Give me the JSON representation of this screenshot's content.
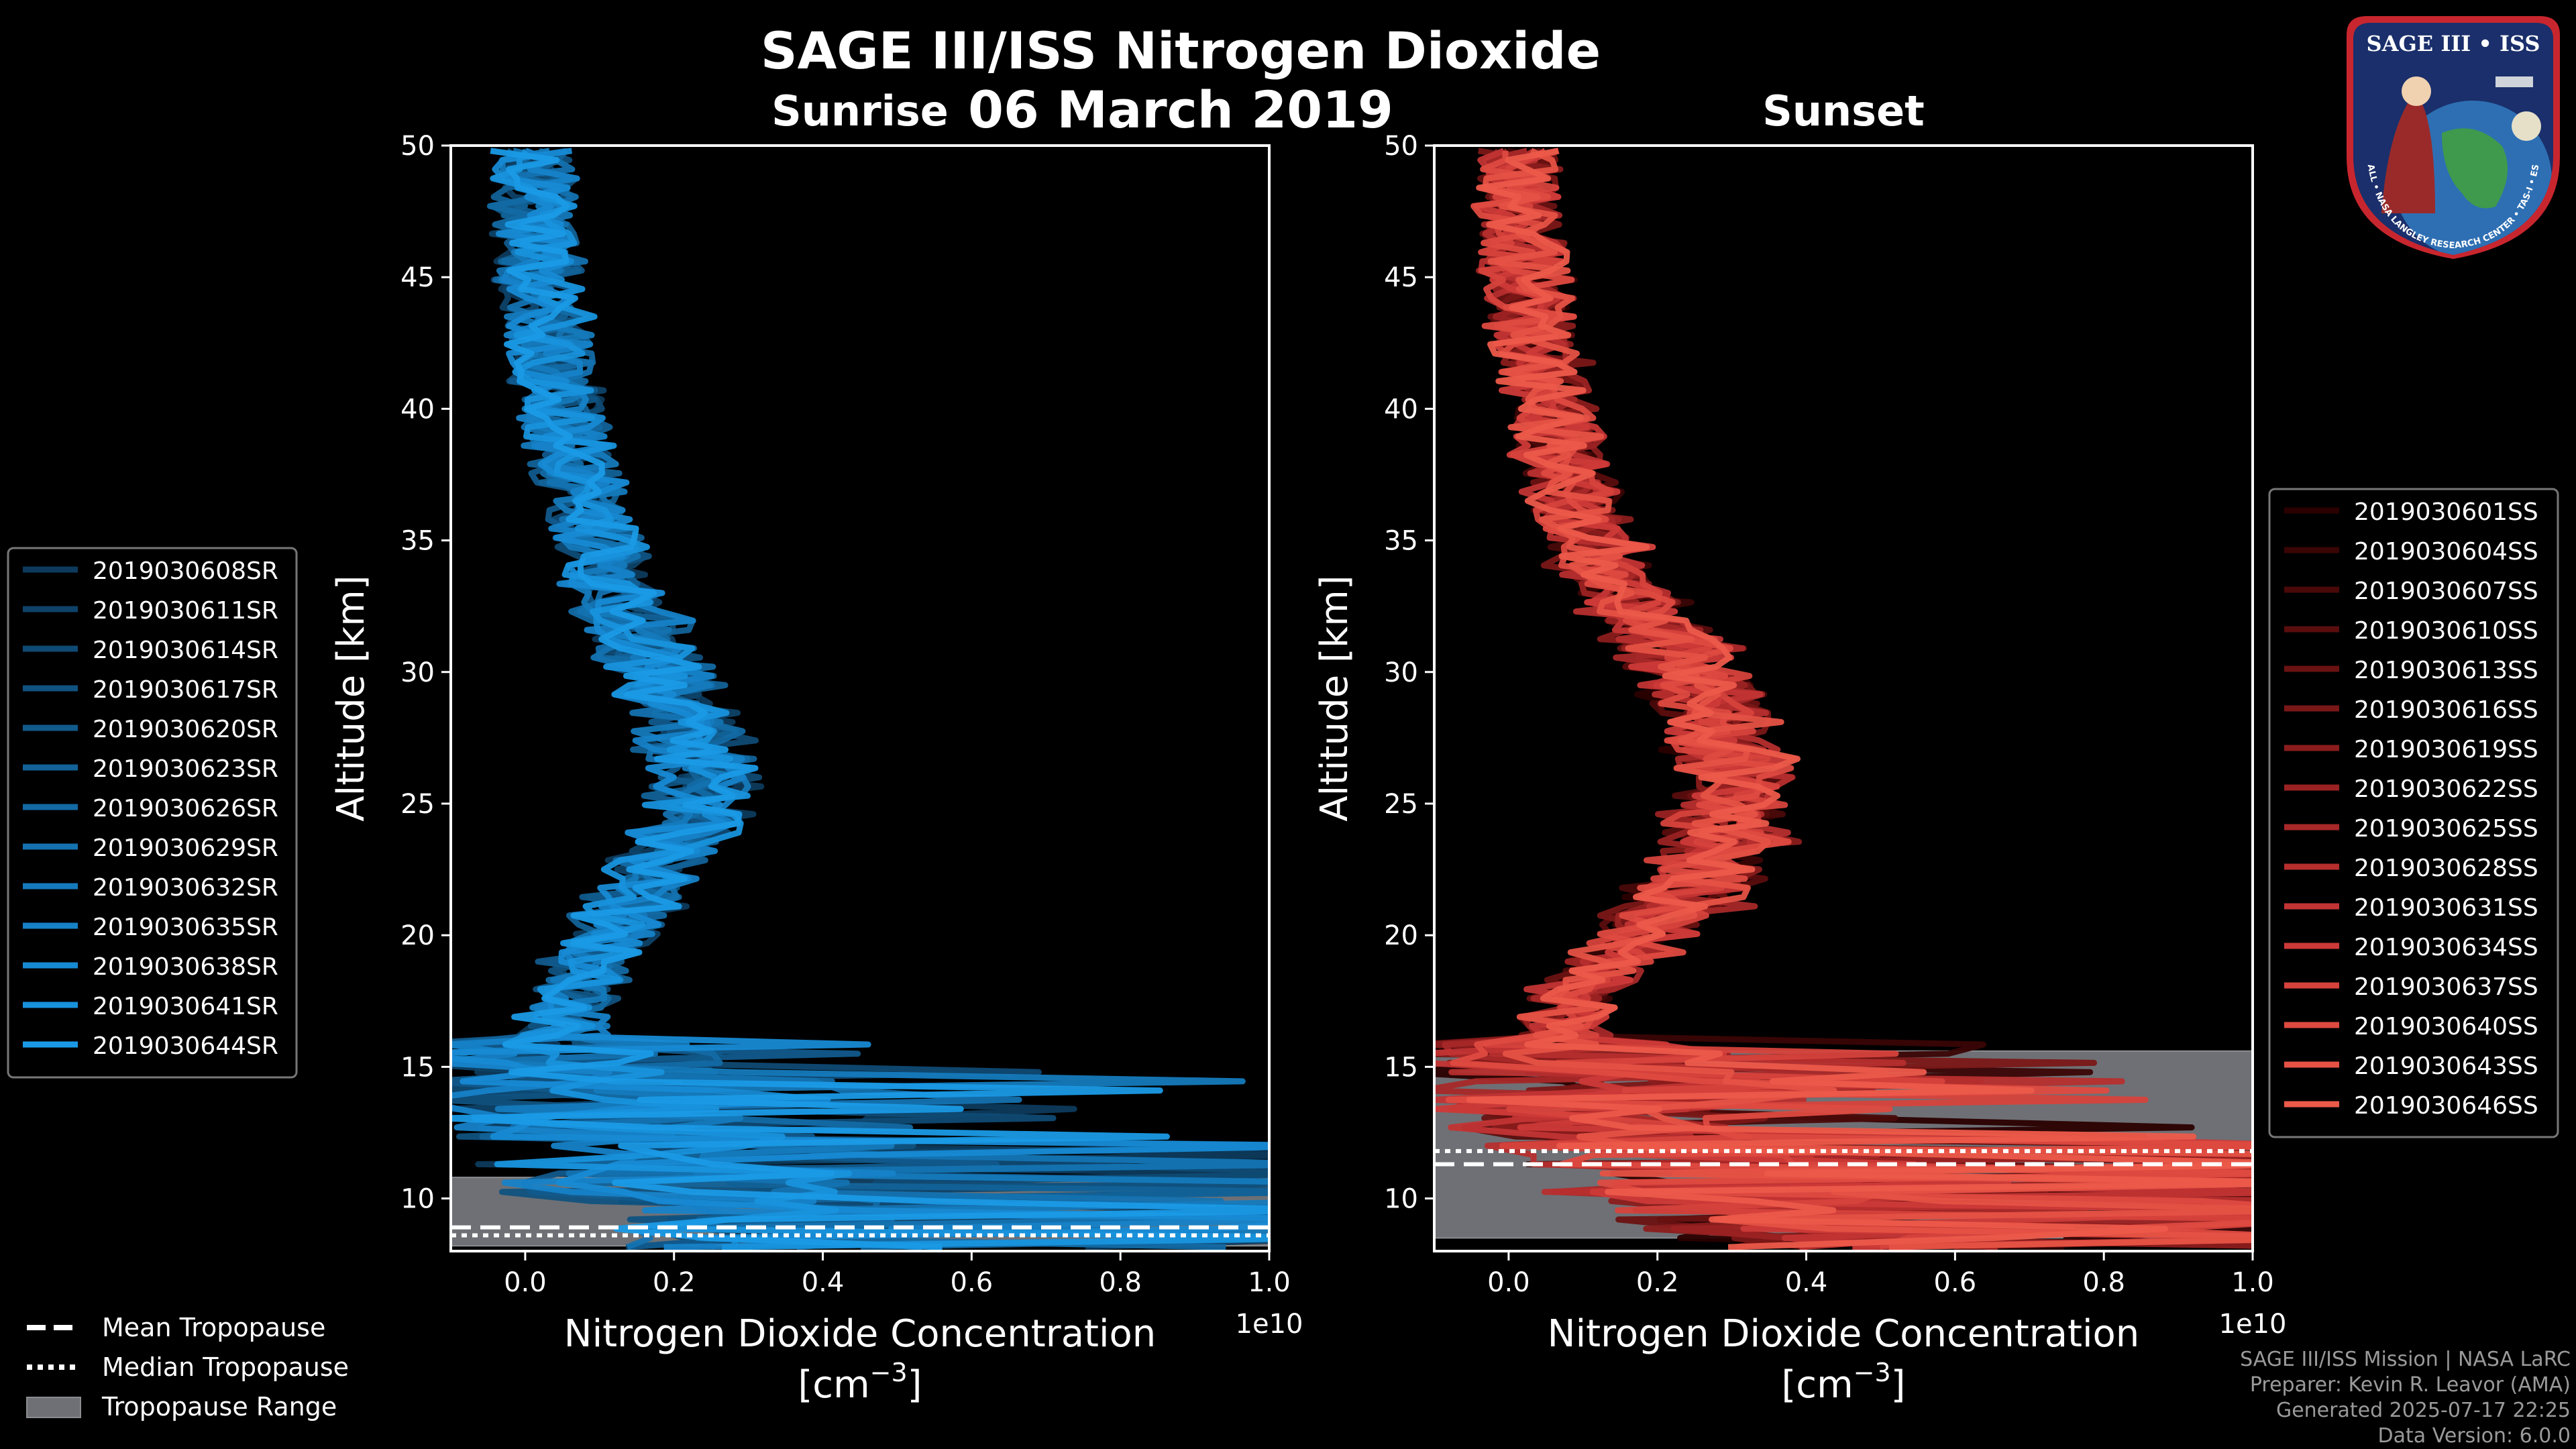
{
  "title": "SAGE III/ISS Nitrogen Dioxide",
  "date": "06 March 2019",
  "logo": {
    "badge_text": "SAGE III • ISS",
    "ring_text": "BALL • NASA LANGLEY RESEARCH CENTER • TAS-I • ESA",
    "icon": "sage-mission-patch"
  },
  "footer": {
    "mission": "SAGE III/ISS Mission | NASA LaRC",
    "preparer": "Preparer: Kevin R. Leavor (AMA)",
    "generated": "Generated 2025-07-17 22:25",
    "version": "Data Version: 6.0.0"
  },
  "bottom_legend": {
    "mean": "Mean Tropopause",
    "median": "Median Tropopause",
    "range": "Tropopause Range"
  },
  "chart_data": [
    {
      "type": "line",
      "title": "Sunrise",
      "xlabel": "Nitrogen Dioxide Concentration",
      "xlabel_unit": "[cm",
      "xlabel_exp": "−3",
      "xlabel_close": "]",
      "ylabel": "Altitude [km]",
      "x_multiplier": "1e10",
      "xlim": [
        -0.1,
        1.0
      ],
      "ylim": [
        8,
        50
      ],
      "xticks": [
        0.0,
        0.2,
        0.4,
        0.6,
        0.8,
        1.0
      ],
      "xtick_labels": [
        "0.0",
        "0.2",
        "0.4",
        "0.6",
        "0.8",
        "1.0"
      ],
      "yticks": [
        10,
        15,
        20,
        25,
        30,
        35,
        40,
        45,
        50
      ],
      "legend_position": "outside-left",
      "tropopause": {
        "mean": 8.9,
        "median": 8.6,
        "range": [
          8.2,
          10.8
        ]
      },
      "profile": {
        "altitude": [
          8.5,
          9.5,
          10.5,
          11.5,
          12.5,
          13.5,
          14.5,
          15.5,
          16.5,
          17.5,
          18.5,
          19.5,
          20.5,
          21.5,
          22.5,
          23.5,
          24.5,
          25.5,
          26.5,
          27.5,
          28.5,
          29.5,
          30.5,
          31.5,
          32.5,
          33.5,
          34.5,
          35.5,
          36.5,
          37.5,
          38.5,
          39.5,
          40.5,
          41.5,
          42.5,
          43.5,
          44.5,
          45.5,
          46.5,
          47.5,
          48.5,
          49.5
        ],
        "mean_concentration": [
          0.35,
          0.3,
          0.22,
          0.15,
          0.1,
          0.08,
          0.06,
          0.05,
          0.05,
          0.06,
          0.08,
          0.1,
          0.12,
          0.15,
          0.18,
          0.21,
          0.23,
          0.24,
          0.24,
          0.23,
          0.21,
          0.19,
          0.17,
          0.15,
          0.13,
          0.11,
          0.1,
          0.09,
          0.08,
          0.07,
          0.06,
          0.05,
          0.05,
          0.04,
          0.03,
          0.03,
          0.02,
          0.02,
          0.01,
          0.01,
          0.01,
          0.01
        ]
      },
      "series": [
        {
          "name": "2019030608SR",
          "color": "#0d3a5c"
        },
        {
          "name": "2019030611SR",
          "color": "#0e4268"
        },
        {
          "name": "2019030614SR",
          "color": "#0f4a74"
        },
        {
          "name": "2019030617SR",
          "color": "#105280"
        },
        {
          "name": "2019030620SR",
          "color": "#115a8c"
        },
        {
          "name": "2019030623SR",
          "color": "#126298"
        },
        {
          "name": "2019030626SR",
          "color": "#136aa4"
        },
        {
          "name": "2019030629SR",
          "color": "#1472b0"
        },
        {
          "name": "2019030632SR",
          "color": "#157abc"
        },
        {
          "name": "2019030635SR",
          "color": "#1682c8"
        },
        {
          "name": "2019030638SR",
          "color": "#178ad4"
        },
        {
          "name": "2019030641SR",
          "color": "#1892dc"
        },
        {
          "name": "2019030644SR",
          "color": "#1a9ae6"
        }
      ]
    },
    {
      "type": "line",
      "title": "Sunset",
      "xlabel": "Nitrogen Dioxide Concentration",
      "xlabel_unit": "[cm",
      "xlabel_exp": "−3",
      "xlabel_close": "]",
      "ylabel": "Altitude [km]",
      "x_multiplier": "1e10",
      "xlim": [
        -0.1,
        1.0
      ],
      "ylim": [
        8,
        50
      ],
      "xticks": [
        0.0,
        0.2,
        0.4,
        0.6,
        0.8,
        1.0
      ],
      "xtick_labels": [
        "0.0",
        "0.2",
        "0.4",
        "0.6",
        "0.8",
        "1.0"
      ],
      "yticks": [
        10,
        15,
        20,
        25,
        30,
        35,
        40,
        45,
        50
      ],
      "legend_position": "outside-right",
      "tropopause": {
        "mean": 11.3,
        "median": 11.8,
        "range": [
          8.5,
          15.6
        ]
      },
      "profile": {
        "altitude": [
          8.5,
          9.5,
          10.5,
          11.5,
          12.5,
          13.5,
          14.5,
          15.5,
          16.5,
          17.5,
          18.5,
          19.5,
          20.5,
          21.5,
          22.5,
          23.5,
          24.5,
          25.5,
          26.5,
          27.5,
          28.5,
          29.5,
          30.5,
          31.5,
          32.5,
          33.5,
          34.5,
          35.5,
          36.5,
          37.5,
          38.5,
          39.5,
          40.5,
          41.5,
          42.5,
          43.5,
          44.5,
          45.5,
          46.5,
          47.5,
          48.5,
          49.5
        ],
        "mean_concentration": [
          0.4,
          0.35,
          0.28,
          0.2,
          0.14,
          0.1,
          0.08,
          0.07,
          0.07,
          0.09,
          0.12,
          0.16,
          0.2,
          0.24,
          0.27,
          0.29,
          0.3,
          0.3,
          0.3,
          0.29,
          0.28,
          0.26,
          0.23,
          0.2,
          0.17,
          0.14,
          0.12,
          0.1,
          0.09,
          0.08,
          0.07,
          0.06,
          0.05,
          0.05,
          0.04,
          0.03,
          0.03,
          0.02,
          0.02,
          0.01,
          0.01,
          0.01
        ]
      },
      "series": [
        {
          "name": "2019030601SS",
          "color": "#2a0000"
        },
        {
          "name": "2019030604SS",
          "color": "#3a0505"
        },
        {
          "name": "2019030607SS",
          "color": "#4a0909"
        },
        {
          "name": "2019030610SS",
          "color": "#5a0d0d"
        },
        {
          "name": "2019030613SS",
          "color": "#6a1212"
        },
        {
          "name": "2019030616SS",
          "color": "#7a1717"
        },
        {
          "name": "2019030619SS",
          "color": "#8a1c1c"
        },
        {
          "name": "2019030622SS",
          "color": "#9a2222"
        },
        {
          "name": "2019030625SS",
          "color": "#a82828"
        },
        {
          "name": "2019030628SS",
          "color": "#b62e2e"
        },
        {
          "name": "2019030631SS",
          "color": "#c23434"
        },
        {
          "name": "2019030634SS",
          "color": "#cc3a38"
        },
        {
          "name": "2019030637SS",
          "color": "#d6423c"
        },
        {
          "name": "2019030640SS",
          "color": "#de4a40"
        },
        {
          "name": "2019030643SS",
          "color": "#e55244"
        },
        {
          "name": "2019030646SS",
          "color": "#ec5a4a"
        }
      ]
    }
  ]
}
